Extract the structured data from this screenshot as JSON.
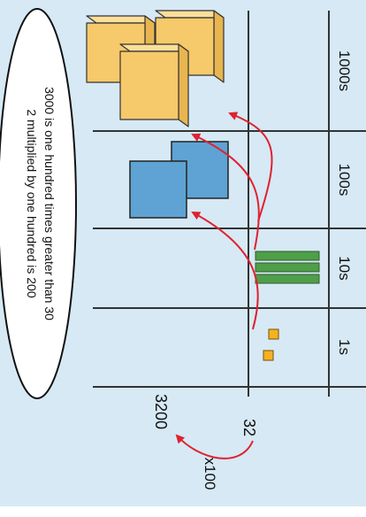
{
  "columns": [
    {
      "label": "1000s"
    },
    {
      "label": "100s"
    },
    {
      "label": "10s"
    },
    {
      "label": "1s"
    }
  ],
  "numbers": {
    "top": "32",
    "bottom": "3200"
  },
  "multiplier": "x100",
  "statement": {
    "line1": "3000 is one hundred times greater than 30",
    "line2": "2 multiplied by one hundred is 200"
  },
  "blocks": {
    "thousands": 3,
    "hundreds": 2,
    "tens": 3,
    "ones": 2
  },
  "colors": {
    "background": "#d6e9f5",
    "thousand_cube": "#f6c96a",
    "hundred_square": "#5ea3d3",
    "ten_rod": "#4f9e4a",
    "one_unit": "#f4b223",
    "arrow": "#e0212f",
    "lines": "#333333"
  }
}
